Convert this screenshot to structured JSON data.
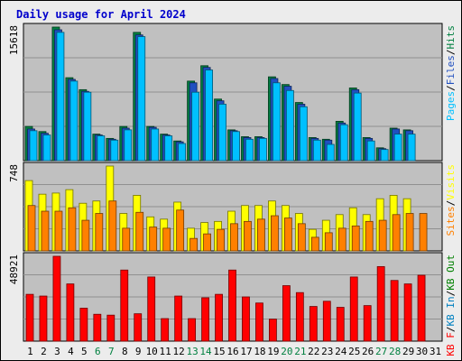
{
  "colors": {
    "background": "#ececec",
    "panel": "#c0c0c0",
    "grid": "#909090",
    "pages": "#00c0ff",
    "files": "#2050c0",
    "hits": "#008040",
    "visits": "#ffff00",
    "sites": "#ff8000",
    "kbin": "#0080c0",
    "kbout": "#008000",
    "kbf": "#ff0000",
    "day_normal": "#000000",
    "day_weekend": "#008040"
  },
  "chart_data": {
    "type": "bar",
    "title": "Daily usage for April 2024",
    "days": [
      "1",
      "2",
      "3",
      "4",
      "5",
      "6",
      "7",
      "8",
      "9",
      "10",
      "11",
      "12",
      "13",
      "14",
      "15",
      "16",
      "17",
      "18",
      "19",
      "20",
      "21",
      "22",
      "23",
      "24",
      "25",
      "26",
      "27",
      "28",
      "29",
      "30",
      "31"
    ],
    "weekend_days": [
      "6",
      "7",
      "13",
      "14",
      "20",
      "21",
      "27",
      "28"
    ],
    "panels": [
      {
        "name": "hits-files-pages",
        "ymax_label": "15618",
        "ymax": 15618,
        "legend": [
          {
            "text": "Pages",
            "color": "#00c0ff"
          },
          {
            "text": "Files",
            "color": "#2050c0"
          },
          {
            "text": "Hits",
            "color": "#008040"
          }
        ],
        "separator": "/",
        "series": [
          {
            "key": "hits",
            "values": [
              4000,
              3400,
              15618,
              9700,
              8300,
              3100,
              2600,
              4000,
              15000,
              4000,
              3100,
              2300,
              9300,
              11100,
              7200,
              3600,
              2800,
              2800,
              9800,
              8900,
              6800,
              2700,
              2500,
              4600,
              8500,
              2700,
              1500,
              3800,
              3600,
              0,
              0
            ]
          },
          {
            "key": "files",
            "values": [
              3700,
              3200,
              15300,
              9500,
              8100,
              3000,
              2500,
              3800,
              14700,
              3900,
              3000,
              2200,
              9100,
              10900,
              7000,
              3500,
              2700,
              2700,
              9600,
              8700,
              6600,
              2600,
              2400,
              4400,
              8300,
              2600,
              1400,
              3700,
              3500,
              0,
              0
            ]
          },
          {
            "key": "pages",
            "values": [
              3500,
              3000,
              15000,
              9300,
              8000,
              2900,
              2400,
              3600,
              14500,
              3700,
              2900,
              2000,
              8000,
              10600,
              6600,
              3400,
              2500,
              2600,
              9100,
              8200,
              6300,
              2400,
              1900,
              4200,
              7900,
              2300,
              1300,
              3100,
              3100,
              0,
              0
            ]
          }
        ]
      },
      {
        "name": "visits-sites",
        "ymax_label": "748",
        "ymax": 748,
        "legend": [
          {
            "text": "Sites",
            "color": "#ff8000"
          },
          {
            "text": "Visits",
            "color": "#ffff00"
          }
        ],
        "separator": "/",
        "series": [
          {
            "key": "visits",
            "values": [
              620,
              500,
              510,
              540,
              420,
              440,
              748,
              330,
              490,
              300,
              280,
              430,
              200,
              250,
              260,
              350,
              400,
              400,
              440,
              400,
              330,
              190,
              270,
              320,
              380,
              320,
              460,
              490,
              460,
              0,
              0
            ]
          },
          {
            "key": "sites",
            "values": [
              400,
              350,
              350,
              380,
              270,
              330,
              440,
              200,
              340,
              210,
              200,
              360,
              110,
              150,
              190,
              240,
              260,
              280,
              310,
              290,
              240,
              120,
              160,
              200,
              220,
              260,
              270,
              320,
              330,
              330,
              0
            ]
          }
        ]
      },
      {
        "name": "kbf-kbin-kbout",
        "ymax_label": "48921",
        "ymax": 48921,
        "legend": [
          {
            "text": "KB F",
            "color": "#ff0000"
          },
          {
            "text": "KB In",
            "color": "#0080c0"
          },
          {
            "text": "KB Out",
            "color": "#008000"
          }
        ],
        "separator": "/",
        "series": [
          {
            "key": "kbf",
            "values": [
              27000,
              26000,
              48921,
              33000,
              19000,
              15500,
              15000,
              41000,
              15800,
              37000,
              13000,
              26000,
              13000,
              25000,
              27000,
              41000,
              25500,
              22000,
              12700,
              32000,
              28000,
              20000,
              23000,
              19500,
              37000,
              20500,
              43000,
              35000,
              33000,
              38000,
              0
            ]
          }
        ]
      }
    ]
  }
}
